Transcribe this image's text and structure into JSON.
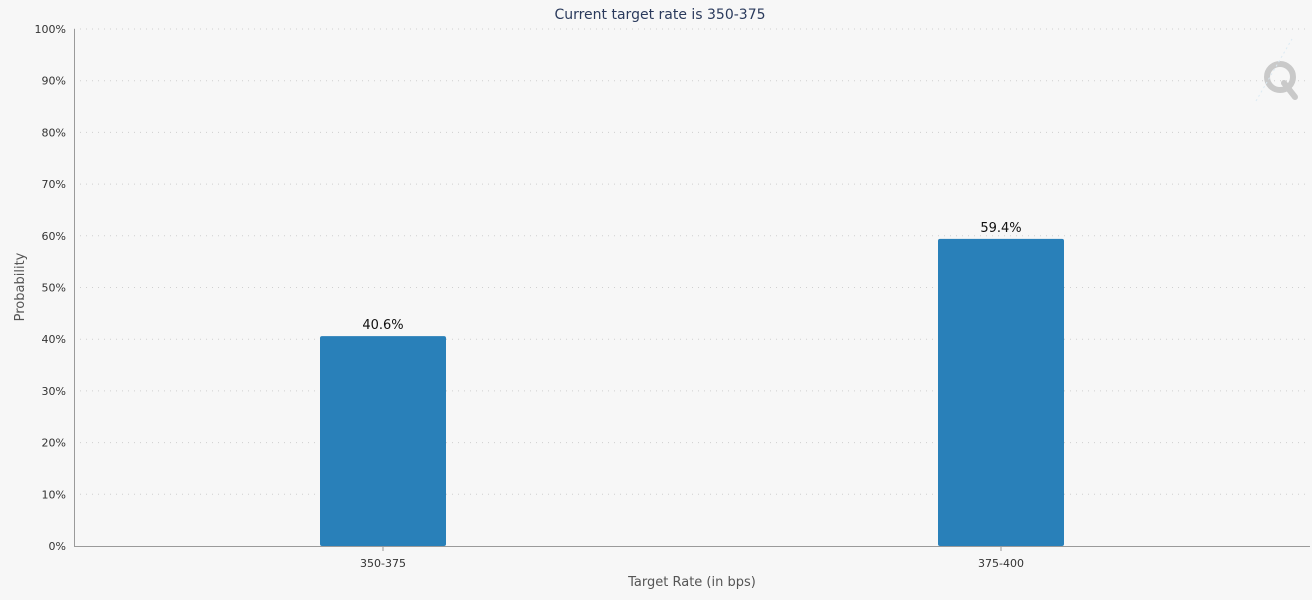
{
  "chart_data": {
    "type": "bar",
    "title": "Current target rate is 350-375",
    "xlabel": "Target Rate (in bps)",
    "ylabel": "Probability",
    "categories": [
      "350-375",
      "375-400"
    ],
    "values": [
      40.6,
      59.4
    ],
    "data_labels": [
      "40.6%",
      "59.4%"
    ],
    "ylim": [
      0,
      100
    ],
    "yticks": [
      "0%",
      "10%",
      "20%",
      "30%",
      "40%",
      "50%",
      "60%",
      "70%",
      "80%",
      "90%",
      "100%"
    ],
    "bar_color": "#2980b9",
    "grid": true,
    "legend": "none"
  },
  "watermark": {
    "icon": "quikstrike-logo-icon",
    "color": "#c9c9c9"
  }
}
